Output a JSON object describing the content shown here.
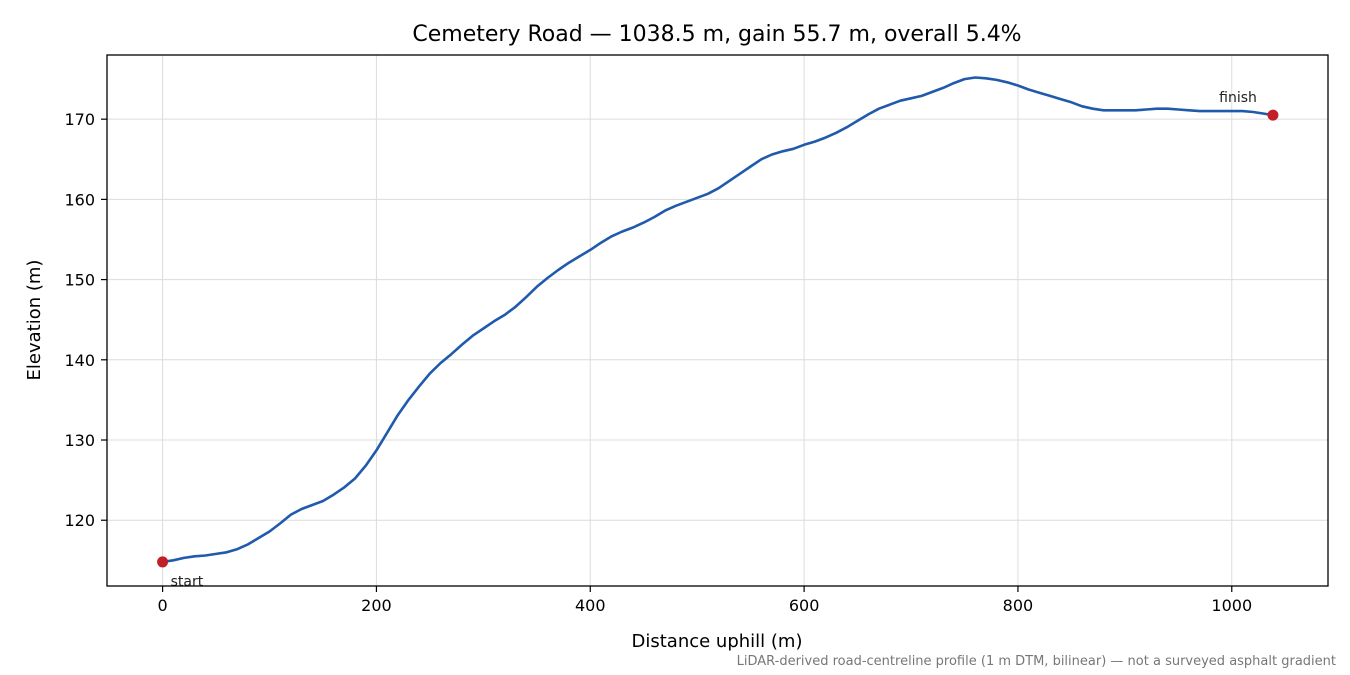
{
  "chart_data": {
    "type": "line",
    "title": "Cemetery Road — 1038.5 m, gain 55.7 m, overall 5.4%",
    "xlabel": "Distance uphill (m)",
    "ylabel": "Elevation (m)",
    "xlim": [
      -52,
      1090
    ],
    "ylim": [
      111.8,
      178
    ],
    "x_ticks": [
      0,
      200,
      400,
      600,
      800,
      1000
    ],
    "y_ticks": [
      120,
      130,
      140,
      150,
      160,
      170
    ],
    "grid": true,
    "series": [
      {
        "color": "#1f5aad",
        "points": [
          [
            0,
            114.8
          ],
          [
            10,
            115.0
          ],
          [
            20,
            115.3
          ],
          [
            30,
            115.5
          ],
          [
            40,
            115.6
          ],
          [
            50,
            115.8
          ],
          [
            60,
            116.0
          ],
          [
            70,
            116.4
          ],
          [
            80,
            117.0
          ],
          [
            90,
            117.8
          ],
          [
            100,
            118.6
          ],
          [
            110,
            119.6
          ],
          [
            120,
            120.7
          ],
          [
            130,
            121.4
          ],
          [
            140,
            121.9
          ],
          [
            150,
            122.4
          ],
          [
            160,
            123.2
          ],
          [
            170,
            124.1
          ],
          [
            180,
            125.2
          ],
          [
            190,
            126.8
          ],
          [
            200,
            128.7
          ],
          [
            210,
            130.9
          ],
          [
            220,
            133.1
          ],
          [
            230,
            135.0
          ],
          [
            240,
            136.7
          ],
          [
            250,
            138.3
          ],
          [
            260,
            139.6
          ],
          [
            270,
            140.7
          ],
          [
            280,
            141.9
          ],
          [
            290,
            143.0
          ],
          [
            300,
            143.9
          ],
          [
            310,
            144.8
          ],
          [
            320,
            145.6
          ],
          [
            330,
            146.6
          ],
          [
            340,
            147.8
          ],
          [
            350,
            149.1
          ],
          [
            360,
            150.2
          ],
          [
            370,
            151.2
          ],
          [
            380,
            152.1
          ],
          [
            390,
            152.9
          ],
          [
            400,
            153.7
          ],
          [
            410,
            154.6
          ],
          [
            420,
            155.4
          ],
          [
            430,
            156.0
          ],
          [
            440,
            156.5
          ],
          [
            450,
            157.1
          ],
          [
            460,
            157.8
          ],
          [
            470,
            158.6
          ],
          [
            480,
            159.2
          ],
          [
            490,
            159.7
          ],
          [
            500,
            160.2
          ],
          [
            510,
            160.7
          ],
          [
            520,
            161.4
          ],
          [
            530,
            162.3
          ],
          [
            540,
            163.2
          ],
          [
            550,
            164.1
          ],
          [
            560,
            165.0
          ],
          [
            570,
            165.6
          ],
          [
            580,
            166.0
          ],
          [
            590,
            166.3
          ],
          [
            600,
            166.8
          ],
          [
            610,
            167.2
          ],
          [
            620,
            167.7
          ],
          [
            630,
            168.3
          ],
          [
            640,
            169.0
          ],
          [
            650,
            169.8
          ],
          [
            660,
            170.6
          ],
          [
            670,
            171.3
          ],
          [
            680,
            171.8
          ],
          [
            690,
            172.3
          ],
          [
            700,
            172.6
          ],
          [
            710,
            172.9
          ],
          [
            720,
            173.4
          ],
          [
            730,
            173.9
          ],
          [
            740,
            174.5
          ],
          [
            750,
            175.0
          ],
          [
            760,
            175.2
          ],
          [
            770,
            175.1
          ],
          [
            780,
            174.9
          ],
          [
            790,
            174.6
          ],
          [
            800,
            174.2
          ],
          [
            810,
            173.7
          ],
          [
            820,
            173.3
          ],
          [
            830,
            172.9
          ],
          [
            840,
            172.5
          ],
          [
            850,
            172.1
          ],
          [
            860,
            171.6
          ],
          [
            870,
            171.3
          ],
          [
            880,
            171.1
          ],
          [
            890,
            171.1
          ],
          [
            900,
            171.1
          ],
          [
            910,
            171.1
          ],
          [
            920,
            171.2
          ],
          [
            930,
            171.3
          ],
          [
            940,
            171.3
          ],
          [
            950,
            171.2
          ],
          [
            960,
            171.1
          ],
          [
            970,
            171.0
          ],
          [
            980,
            171.0
          ],
          [
            990,
            171.0
          ],
          [
            1000,
            171.0
          ],
          [
            1010,
            171.0
          ],
          [
            1020,
            170.9
          ],
          [
            1030,
            170.7
          ],
          [
            1038.5,
            170.5
          ]
        ]
      }
    ],
    "markers": [
      {
        "label": "start",
        "x": 0,
        "y": 114.8,
        "color": "#c0202a"
      },
      {
        "label": "finish",
        "x": 1038.5,
        "y": 170.5,
        "color": "#c0202a"
      }
    ]
  },
  "footnote": "LiDAR-derived road-centreline profile (1 m DTM, bilinear) — not a surveyed asphalt gradient"
}
